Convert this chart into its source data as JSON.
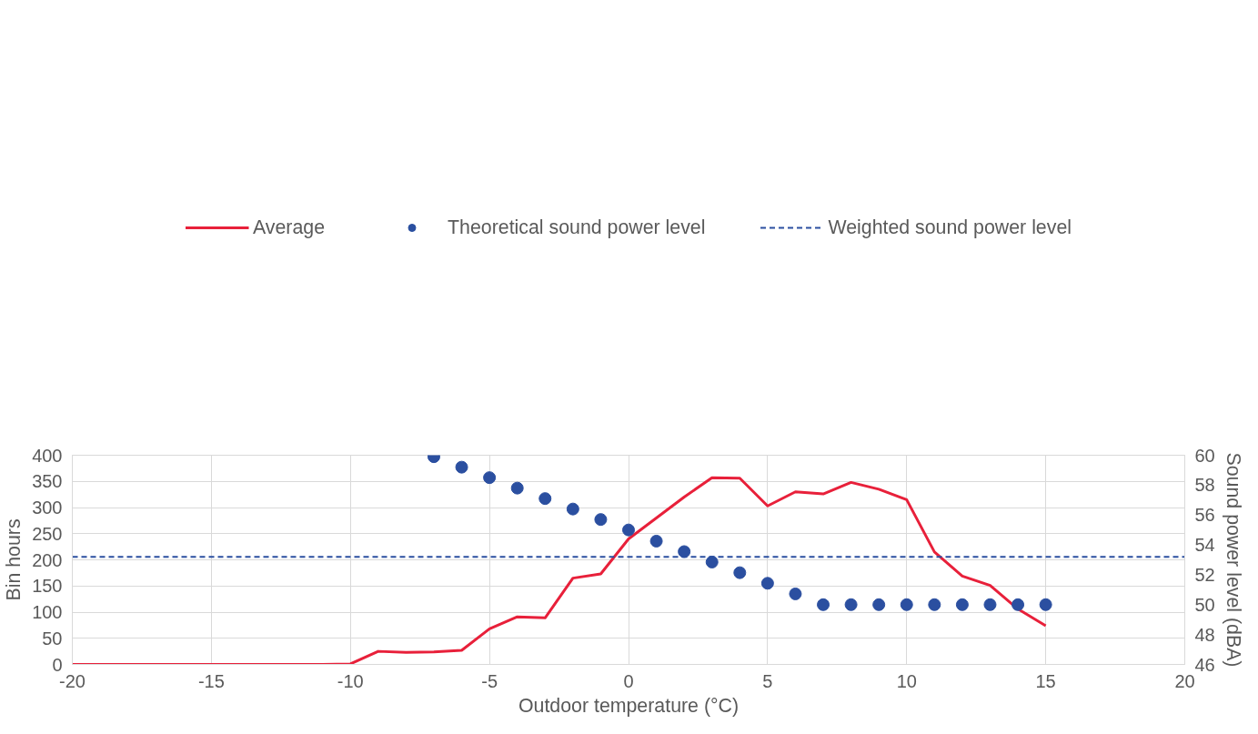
{
  "chart_data": {
    "type": "line",
    "xlabel": "Outdoor temperature (°C)",
    "ylabel": "Bin hours",
    "y2label": "Sound power level (dBA)",
    "xlim": [
      -20,
      20
    ],
    "xticks": [
      -20,
      -15,
      -10,
      -5,
      0,
      5,
      10,
      15,
      20
    ],
    "ylim": [
      0,
      400
    ],
    "yticks": [
      0,
      50,
      100,
      150,
      200,
      250,
      300,
      350,
      400
    ],
    "y2lim": [
      46,
      60
    ],
    "y2ticks": [
      46,
      48,
      50,
      52,
      54,
      56,
      58,
      60
    ],
    "grid": true,
    "legend": "top",
    "series": [
      {
        "name": "Average",
        "color": "#e8203a",
        "line_style": "solid",
        "x": [
          -20,
          -19,
          -18,
          -17,
          -16,
          -15,
          -14,
          -13,
          -12,
          -11,
          -10,
          -9,
          -8,
          -7,
          -6,
          -5,
          -4,
          -3,
          -2,
          -1,
          0,
          1,
          2,
          3,
          4,
          5,
          6,
          7,
          8,
          9,
          10,
          11,
          12,
          13,
          14,
          15
        ],
        "values": [
          0,
          0,
          0,
          0,
          0,
          0,
          0,
          0,
          0,
          0,
          1,
          25,
          23,
          24,
          27,
          68,
          91,
          89,
          165,
          173,
          240,
          280,
          320,
          357,
          356,
          303,
          330,
          326,
          348,
          335,
          315,
          215,
          169,
          151,
          106,
          74
        ]
      },
      {
        "name": "Theoretical sound power level",
        "type": "scatter",
        "marker": "circle",
        "axis": "y2",
        "color": "#2b4fa0",
        "x": [
          -7,
          -6,
          -5,
          -4,
          -3,
          -2,
          -1,
          0,
          1,
          2,
          3,
          4,
          5,
          6,
          7,
          8,
          9,
          10,
          11,
          12,
          13,
          14,
          15
        ],
        "values": [
          59.9,
          59.2,
          58.5,
          57.8,
          57.1,
          56.4,
          55.7,
          55.0,
          54.25,
          53.55,
          52.85,
          52.14,
          51.43,
          50.72,
          50,
          50,
          50,
          50,
          50,
          50,
          50,
          50,
          50
        ]
      },
      {
        "name": "Weighted sound power level",
        "type": "line",
        "line_style": "dashed",
        "axis": "y2",
        "color": "#2b4fa0",
        "x": [
          -20,
          20
        ],
        "values": [
          53.2,
          53.2
        ]
      }
    ]
  }
}
